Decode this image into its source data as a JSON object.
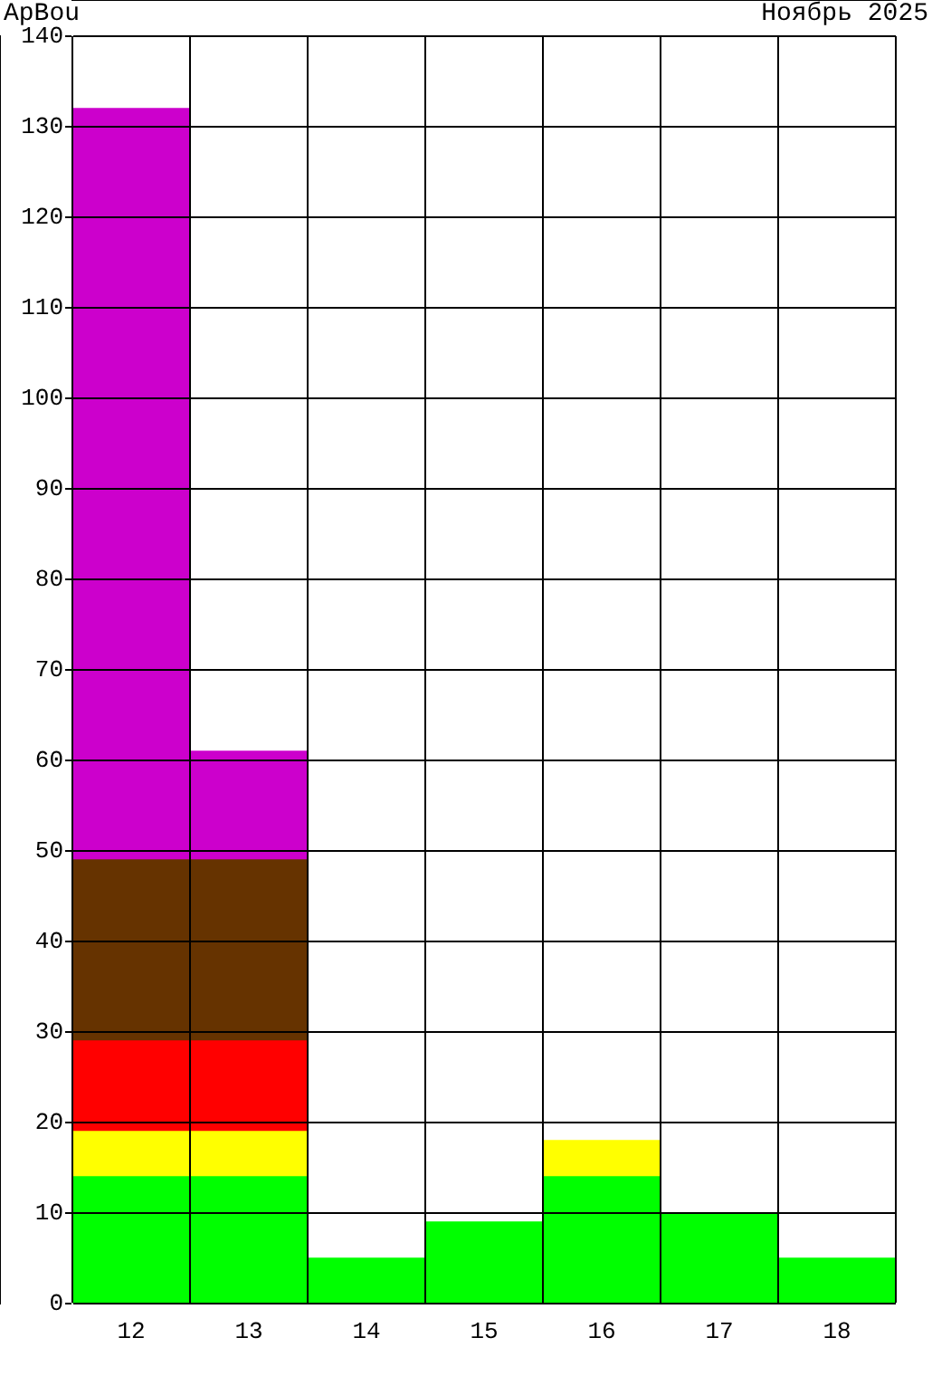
{
  "chart_data": {
    "type": "bar",
    "title": "ApBou",
    "subtitle": "Ноябрь 2025",
    "categories": [
      "12",
      "13",
      "14",
      "15",
      "16",
      "17",
      "18"
    ],
    "stacked": true,
    "ylim": [
      0,
      140
    ],
    "yticks": [
      0,
      10,
      20,
      30,
      40,
      50,
      60,
      70,
      80,
      90,
      100,
      110,
      120,
      130,
      140
    ],
    "grid": true,
    "legend": false,
    "series": [
      {
        "color": "#00ff00",
        "values": [
          14,
          14,
          5,
          9,
          14,
          10,
          5
        ]
      },
      {
        "color": "#ffff00",
        "values": [
          5,
          5,
          null,
          null,
          4,
          null,
          null
        ]
      },
      {
        "color": "#ff0000",
        "values": [
          10,
          10,
          null,
          null,
          null,
          null,
          null
        ]
      },
      {
        "color": "#663300",
        "values": [
          20,
          20,
          null,
          null,
          null,
          null,
          null
        ]
      },
      {
        "color": "#cc00cc",
        "values": [
          83,
          12,
          null,
          null,
          null,
          null,
          null
        ]
      }
    ]
  }
}
